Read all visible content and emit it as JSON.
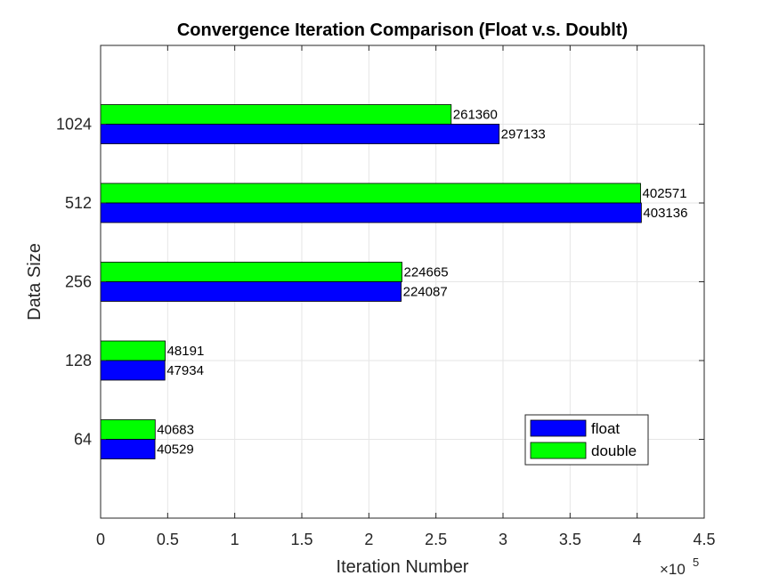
{
  "chart_data": {
    "type": "bar",
    "orientation": "horizontal",
    "title": "Convergence Iteration Comparison (Float v.s. Doublt)",
    "xlabel": "Iteration Number",
    "ylabel": "Data Size",
    "categories": [
      "64",
      "128",
      "256",
      "512",
      "1024"
    ],
    "series": [
      {
        "name": "float",
        "color": "#0000FF",
        "values": [
          40529,
          47934,
          224087,
          403136,
          297133
        ]
      },
      {
        "name": "double",
        "color": "#00FF00",
        "values": [
          40683,
          48191,
          224665,
          402571,
          261360
        ]
      }
    ],
    "xlim": [
      0,
      450000
    ],
    "x_ticks": [
      0,
      50000,
      100000,
      150000,
      200000,
      250000,
      300000,
      350000,
      400000,
      450000
    ],
    "x_tick_labels": [
      "0",
      "0.5",
      "1",
      "1.5",
      "2",
      "2.5",
      "3",
      "3.5",
      "4",
      "4.5"
    ],
    "x_exponent_label": "×10",
    "x_exponent_power": "5",
    "grid": true,
    "legend_position": "lower-right"
  }
}
